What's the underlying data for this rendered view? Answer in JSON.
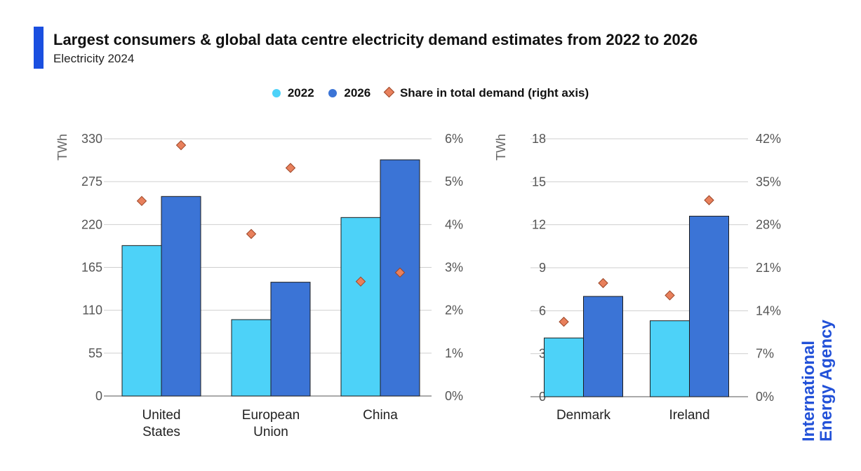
{
  "header": {
    "title": "Largest consumers & global data centre electricity demand estimates from 2022 to 2026",
    "subtitle": "Electricity 2024"
  },
  "legend": {
    "items": [
      {
        "label": "2022",
        "color": "#4dd2f8",
        "shape": "circle"
      },
      {
        "label": "2026",
        "color": "#3b74d6",
        "shape": "circle"
      },
      {
        "label": "Share in total demand (right axis)",
        "color": "#e8805c",
        "shape": "diamond"
      }
    ]
  },
  "chart_data": [
    {
      "type": "bar",
      "categories": [
        "United States",
        "European Union",
        "China"
      ],
      "category_lines": [
        [
          "United",
          "States"
        ],
        [
          "European",
          "Union"
        ],
        [
          "China"
        ]
      ],
      "series": [
        {
          "name": "2022",
          "values": [
            193,
            98,
            229
          ],
          "color": "#4dd2f8"
        },
        {
          "name": "2026",
          "values": [
            256,
            146,
            303
          ],
          "color": "#3b74d6"
        }
      ],
      "share_series": {
        "name": "Share in total demand (right axis)",
        "values": [
          [
            4.55,
            5.85
          ],
          [
            3.78,
            5.32
          ],
          [
            2.67,
            2.88
          ]
        ],
        "color": "#e8805c"
      },
      "ylabel": "TWh",
      "ylim": [
        0,
        330
      ],
      "yticks": [
        0,
        55,
        110,
        165,
        220,
        275,
        330
      ],
      "y2lim": [
        0,
        6
      ],
      "y2ticks": [
        "0%",
        "1%",
        "2%",
        "3%",
        "4%",
        "5%",
        "6%"
      ],
      "grid": true
    },
    {
      "type": "bar",
      "categories": [
        "Denmark",
        "Ireland"
      ],
      "category_lines": [
        [
          "Denmark"
        ],
        [
          "Ireland"
        ]
      ],
      "series": [
        {
          "name": "2022",
          "values": [
            4.1,
            5.3
          ],
          "color": "#4dd2f8"
        },
        {
          "name": "2026",
          "values": [
            7.0,
            12.6
          ],
          "color": "#3b74d6"
        }
      ],
      "share_series": {
        "name": "Share in total demand (right axis)",
        "values": [
          [
            12.2,
            18.5
          ],
          [
            16.5,
            32.0
          ]
        ],
        "color": "#e8805c"
      },
      "ylabel": "TWh",
      "ylim": [
        0,
        18
      ],
      "yticks": [
        0,
        3,
        6,
        9,
        12,
        15,
        18
      ],
      "y2lim": [
        0,
        42
      ],
      "y2ticks": [
        "0%",
        "7%",
        "14%",
        "21%",
        "28%",
        "35%",
        "42%"
      ],
      "grid": true
    }
  ],
  "logo": {
    "lines": [
      "International",
      "Energy Agency"
    ],
    "color": "#2251d8"
  }
}
